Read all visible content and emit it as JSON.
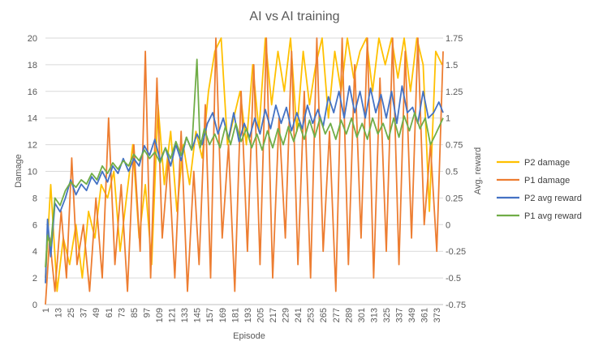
{
  "chart_data": {
    "type": "line",
    "title": "AI vs AI training",
    "xlabel": "Episode",
    "ylabel": "Damage",
    "y2label": "Avg. reward",
    "ylim": [
      0,
      20
    ],
    "y2lim": [
      -0.75,
      1.75
    ],
    "x_range": [
      1,
      379
    ],
    "y_ticks": [
      0,
      2,
      4,
      6,
      8,
      10,
      12,
      14,
      16,
      18,
      20
    ],
    "y2_ticks": [
      "-0.75",
      "-0.5",
      "-0.25",
      "0",
      "0.25",
      "0.5",
      "0.75",
      "1",
      "1.25",
      "1.5",
      "1.75"
    ],
    "x_ticks": [
      1,
      13,
      25,
      37,
      49,
      61,
      73,
      85,
      97,
      109,
      121,
      133,
      145,
      157,
      169,
      181,
      193,
      205,
      217,
      229,
      241,
      253,
      265,
      277,
      289,
      301,
      313,
      325,
      337,
      349,
      361,
      373
    ],
    "gridlines": "horizontal",
    "legend_position": "right",
    "colors": {
      "p2_damage": "#FFC000",
      "p1_damage": "#ED7D31",
      "p2_reward": "#4472C4",
      "p1_reward": "#70AD47"
    },
    "series": [
      {
        "name": "P2 damage",
        "axis": "left",
        "color": "#FFC000",
        "points": [
          [
            1,
            2
          ],
          [
            6,
            9
          ],
          [
            12,
            1
          ],
          [
            18,
            5
          ],
          [
            24,
            3
          ],
          [
            30,
            6
          ],
          [
            36,
            2
          ],
          [
            42,
            7
          ],
          [
            48,
            5
          ],
          [
            54,
            9
          ],
          [
            60,
            8
          ],
          [
            66,
            10
          ],
          [
            72,
            4
          ],
          [
            78,
            8
          ],
          [
            84,
            12
          ],
          [
            90,
            5
          ],
          [
            96,
            9
          ],
          [
            102,
            3
          ],
          [
            108,
            15
          ],
          [
            114,
            9
          ],
          [
            120,
            13
          ],
          [
            126,
            7
          ],
          [
            132,
            12
          ],
          [
            138,
            9
          ],
          [
            144,
            13
          ],
          [
            150,
            11
          ],
          [
            156,
            16
          ],
          [
            162,
            19
          ],
          [
            168,
            20
          ],
          [
            174,
            12
          ],
          [
            180,
            14
          ],
          [
            186,
            16
          ],
          [
            192,
            12
          ],
          [
            198,
            18
          ],
          [
            204,
            13
          ],
          [
            210,
            20
          ],
          [
            216,
            15
          ],
          [
            222,
            19
          ],
          [
            228,
            16
          ],
          [
            234,
            20
          ],
          [
            240,
            13
          ],
          [
            246,
            19
          ],
          [
            252,
            15
          ],
          [
            258,
            18
          ],
          [
            264,
            20
          ],
          [
            270,
            14
          ],
          [
            276,
            19
          ],
          [
            282,
            16
          ],
          [
            288,
            20
          ],
          [
            294,
            17
          ],
          [
            300,
            19
          ],
          [
            306,
            20
          ],
          [
            312,
            16
          ],
          [
            318,
            20
          ],
          [
            324,
            18
          ],
          [
            330,
            20
          ],
          [
            336,
            17
          ],
          [
            342,
            20
          ],
          [
            348,
            16
          ],
          [
            354,
            20
          ],
          [
            360,
            18
          ],
          [
            366,
            7
          ],
          [
            372,
            19
          ],
          [
            378,
            18
          ]
        ]
      },
      {
        "name": "P1 damage",
        "axis": "left",
        "color": "#ED7D31",
        "points": [
          [
            1,
            0
          ],
          [
            5,
            5
          ],
          [
            10,
            1
          ],
          [
            16,
            7
          ],
          [
            21,
            2
          ],
          [
            26,
            11
          ],
          [
            31,
            3
          ],
          [
            37,
            6
          ],
          [
            43,
            1
          ],
          [
            49,
            8
          ],
          [
            55,
            2
          ],
          [
            61,
            14
          ],
          [
            67,
            3
          ],
          [
            73,
            9
          ],
          [
            79,
            1
          ],
          [
            85,
            12
          ],
          [
            91,
            4
          ],
          [
            96,
            19
          ],
          [
            101,
            2
          ],
          [
            107,
            17
          ],
          [
            112,
            5
          ],
          [
            118,
            11
          ],
          [
            124,
            2
          ],
          [
            130,
            13
          ],
          [
            136,
            1
          ],
          [
            142,
            10
          ],
          [
            147,
            3
          ],
          [
            153,
            15
          ],
          [
            158,
            2
          ],
          [
            163,
            20
          ],
          [
            169,
            5
          ],
          [
            175,
            12
          ],
          [
            181,
            1
          ],
          [
            187,
            16
          ],
          [
            193,
            4
          ],
          [
            199,
            18
          ],
          [
            205,
            3
          ],
          [
            211,
            20
          ],
          [
            217,
            2
          ],
          [
            223,
            14
          ],
          [
            229,
            5
          ],
          [
            235,
            19
          ],
          [
            241,
            3
          ],
          [
            247,
            16
          ],
          [
            253,
            2
          ],
          [
            259,
            20
          ],
          [
            265,
            4
          ],
          [
            271,
            13
          ],
          [
            277,
            1
          ],
          [
            283,
            20
          ],
          [
            289,
            3
          ],
          [
            295,
            18
          ],
          [
            301,
            5
          ],
          [
            307,
            20
          ],
          [
            313,
            2
          ],
          [
            319,
            17
          ],
          [
            325,
            4
          ],
          [
            331,
            20
          ],
          [
            337,
            3
          ],
          [
            343,
            19
          ],
          [
            349,
            5
          ],
          [
            355,
            20
          ],
          [
            361,
            6
          ],
          [
            367,
            12
          ],
          [
            373,
            4
          ],
          [
            379,
            19
          ]
        ]
      },
      {
        "name": "P2 avg reward",
        "axis": "right",
        "color": "#4472C4",
        "points": [
          [
            1,
            -0.55
          ],
          [
            3,
            0.05
          ],
          [
            6,
            -0.3
          ],
          [
            10,
            0.2
          ],
          [
            15,
            0.12
          ],
          [
            20,
            0.25
          ],
          [
            25,
            0.42
          ],
          [
            30,
            0.28
          ],
          [
            35,
            0.38
          ],
          [
            40,
            0.32
          ],
          [
            45,
            0.45
          ],
          [
            50,
            0.38
          ],
          [
            55,
            0.5
          ],
          [
            60,
            0.4
          ],
          [
            65,
            0.55
          ],
          [
            70,
            0.48
          ],
          [
            75,
            0.62
          ],
          [
            80,
            0.5
          ],
          [
            85,
            0.62
          ],
          [
            90,
            0.55
          ],
          [
            95,
            0.74
          ],
          [
            100,
            0.65
          ],
          [
            105,
            0.8
          ],
          [
            110,
            0.6
          ],
          [
            115,
            0.72
          ],
          [
            120,
            0.55
          ],
          [
            125,
            0.75
          ],
          [
            130,
            0.6
          ],
          [
            135,
            0.82
          ],
          [
            140,
            0.7
          ],
          [
            145,
            0.85
          ],
          [
            150,
            0.75
          ],
          [
            155,
            0.95
          ],
          [
            160,
            1.05
          ],
          [
            165,
            0.85
          ],
          [
            170,
            1.0
          ],
          [
            175,
            0.8
          ],
          [
            180,
            1.05
          ],
          [
            185,
            0.78
          ],
          [
            190,
            0.95
          ],
          [
            195,
            0.82
          ],
          [
            200,
            1.0
          ],
          [
            205,
            0.85
          ],
          [
            210,
            1.08
          ],
          [
            215,
            0.9
          ],
          [
            220,
            1.12
          ],
          [
            225,
            0.95
          ],
          [
            230,
            1.1
          ],
          [
            235,
            0.88
          ],
          [
            240,
            1.05
          ],
          [
            245,
            0.9
          ],
          [
            250,
            1.12
          ],
          [
            255,
            0.95
          ],
          [
            260,
            1.08
          ],
          [
            265,
            0.92
          ],
          [
            270,
            1.2
          ],
          [
            275,
            1.05
          ],
          [
            280,
            1.25
          ],
          [
            285,
            1.0
          ],
          [
            290,
            1.3
          ],
          [
            295,
            1.05
          ],
          [
            300,
            1.25
          ],
          [
            305,
            1.0
          ],
          [
            310,
            1.28
          ],
          [
            315,
            1.05
          ],
          [
            320,
            1.22
          ],
          [
            325,
            1.0
          ],
          [
            330,
            1.25
          ],
          [
            335,
            0.95
          ],
          [
            340,
            1.3
          ],
          [
            345,
            1.05
          ],
          [
            350,
            1.1
          ],
          [
            355,
            0.95
          ],
          [
            360,
            1.25
          ],
          [
            365,
            1.0
          ],
          [
            370,
            1.05
          ],
          [
            375,
            1.15
          ],
          [
            379,
            1.05
          ]
        ]
      },
      {
        "name": "P1 avg reward",
        "axis": "right",
        "color": "#70AD47",
        "points": [
          [
            1,
            -0.4
          ],
          [
            3,
            -0.1
          ],
          [
            6,
            -0.2
          ],
          [
            10,
            0.25
          ],
          [
            15,
            0.18
          ],
          [
            20,
            0.32
          ],
          [
            25,
            0.4
          ],
          [
            30,
            0.35
          ],
          [
            35,
            0.42
          ],
          [
            40,
            0.38
          ],
          [
            45,
            0.48
          ],
          [
            50,
            0.42
          ],
          [
            55,
            0.55
          ],
          [
            60,
            0.48
          ],
          [
            65,
            0.58
          ],
          [
            70,
            0.52
          ],
          [
            75,
            0.6
          ],
          [
            80,
            0.55
          ],
          [
            85,
            0.66
          ],
          [
            90,
            0.6
          ],
          [
            95,
            0.7
          ],
          [
            100,
            0.62
          ],
          [
            105,
            0.68
          ],
          [
            110,
            0.58
          ],
          [
            115,
            0.72
          ],
          [
            120,
            0.62
          ],
          [
            125,
            0.78
          ],
          [
            130,
            0.65
          ],
          [
            135,
            0.82
          ],
          [
            140,
            0.7
          ],
          [
            145,
            1.55
          ],
          [
            148,
            0.72
          ],
          [
            152,
            0.9
          ],
          [
            157,
            0.75
          ],
          [
            162,
            0.85
          ],
          [
            167,
            0.72
          ],
          [
            172,
            0.92
          ],
          [
            177,
            0.75
          ],
          [
            182,
            0.95
          ],
          [
            187,
            0.78
          ],
          [
            192,
            0.9
          ],
          [
            197,
            0.72
          ],
          [
            202,
            0.85
          ],
          [
            207,
            0.7
          ],
          [
            212,
            0.88
          ],
          [
            217,
            0.72
          ],
          [
            222,
            0.9
          ],
          [
            227,
            0.75
          ],
          [
            232,
            0.92
          ],
          [
            237,
            0.78
          ],
          [
            242,
            0.95
          ],
          [
            247,
            0.8
          ],
          [
            252,
            0.98
          ],
          [
            257,
            0.82
          ],
          [
            262,
            1.0
          ],
          [
            267,
            0.85
          ],
          [
            272,
            0.95
          ],
          [
            277,
            0.8
          ],
          [
            282,
            0.98
          ],
          [
            287,
            0.85
          ],
          [
            292,
            1.0
          ],
          [
            297,
            0.82
          ],
          [
            302,
            0.95
          ],
          [
            307,
            0.8
          ],
          [
            312,
            1.0
          ],
          [
            317,
            0.85
          ],
          [
            322,
            0.95
          ],
          [
            327,
            0.8
          ],
          [
            332,
            1.0
          ],
          [
            337,
            0.82
          ],
          [
            342,
            1.02
          ],
          [
            347,
            0.88
          ],
          [
            352,
            1.05
          ],
          [
            357,
            0.9
          ],
          [
            362,
            1.0
          ],
          [
            367,
            0.75
          ],
          [
            372,
            0.85
          ],
          [
            379,
            1.0
          ]
        ]
      }
    ]
  }
}
